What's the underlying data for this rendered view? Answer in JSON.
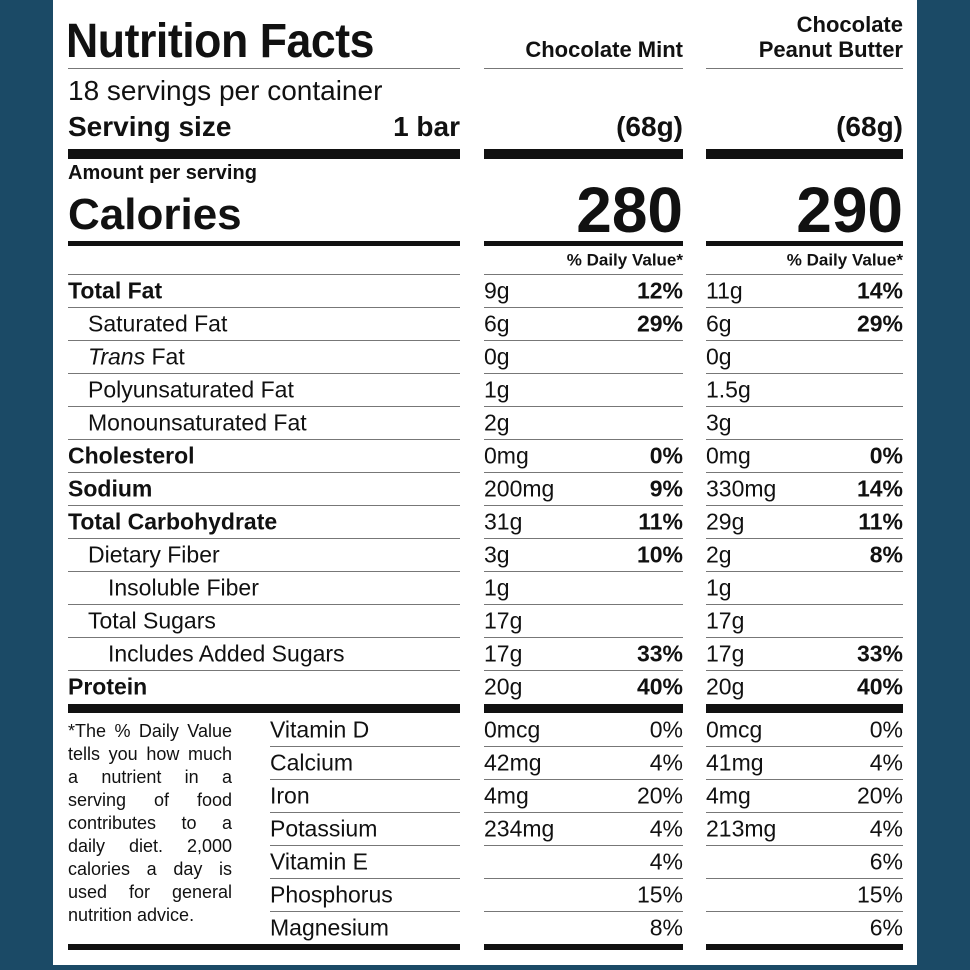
{
  "header": {
    "title": "Nutrition Facts",
    "servings": "18 servings per container",
    "serving_size_label": "Serving size",
    "serving_size": "1 bar",
    "amount_per_serving": "Amount per serving",
    "calories_label": "Calories"
  },
  "products": [
    {
      "name_lines": [
        "Chocolate Mint"
      ],
      "serving_weight": "(68g)",
      "calories": 280,
      "daily_value_header": "% Daily Value*"
    },
    {
      "name_lines": [
        "Chocolate",
        "Peanut Butter"
      ],
      "serving_weight": "(68g)",
      "calories": 290,
      "daily_value_header": "% Daily Value*"
    }
  ],
  "nutrients": [
    {
      "label": "Total Fat",
      "values": [
        [
          "9g",
          "12%"
        ],
        [
          "11g",
          "14%"
        ]
      ]
    },
    {
      "label": "Saturated Fat",
      "values": [
        [
          "6g",
          "29%"
        ],
        [
          "6g",
          "29%"
        ]
      ]
    },
    {
      "label": "Trans Fat",
      "values": [
        [
          "0g",
          null
        ],
        [
          "0g",
          null
        ]
      ]
    },
    {
      "label": "Polyunsaturated Fat",
      "values": [
        [
          "1g",
          null
        ],
        [
          "1.5g",
          null
        ]
      ]
    },
    {
      "label": "Monounsaturated Fat",
      "values": [
        [
          "2g",
          null
        ],
        [
          "3g",
          null
        ]
      ]
    },
    {
      "label": "Cholesterol",
      "values": [
        [
          "0mg",
          "0%"
        ],
        [
          "0mg",
          "0%"
        ]
      ]
    },
    {
      "label": "Sodium",
      "values": [
        [
          "200mg",
          "9%"
        ],
        [
          "330mg",
          "14%"
        ]
      ]
    },
    {
      "label": "Total Carbohydrate",
      "values": [
        [
          "31g",
          "11%"
        ],
        [
          "29g",
          "11%"
        ]
      ]
    },
    {
      "label": "Dietary Fiber",
      "values": [
        [
          "3g",
          "10%"
        ],
        [
          "2g",
          "8%"
        ]
      ]
    },
    {
      "label": "Insoluble Fiber",
      "values": [
        [
          "1g",
          null
        ],
        [
          "1g",
          null
        ]
      ]
    },
    {
      "label": "Total Sugars",
      "values": [
        [
          "17g",
          null
        ],
        [
          "17g",
          null
        ]
      ]
    },
    {
      "label": "Includes Added Sugars",
      "values": [
        [
          "17g",
          "33%"
        ],
        [
          "17g",
          "33%"
        ]
      ]
    },
    {
      "label": "Protein",
      "values": [
        [
          "20g",
          "40%"
        ],
        [
          "20g",
          "40%"
        ]
      ]
    }
  ],
  "vitamins": [
    {
      "label": "Vitamin D",
      "values": [
        [
          "0mcg",
          "0%"
        ],
        [
          "0mcg",
          "0%"
        ]
      ]
    },
    {
      "label": "Calcium",
      "values": [
        [
          "42mg",
          "4%"
        ],
        [
          "41mg",
          "4%"
        ]
      ]
    },
    {
      "label": "Iron",
      "values": [
        [
          "4mg",
          "20%"
        ],
        [
          "4mg",
          "20%"
        ]
      ]
    },
    {
      "label": "Potassium",
      "values": [
        [
          "234mg",
          "4%"
        ],
        [
          "213mg",
          "4%"
        ]
      ]
    },
    {
      "label": "Vitamin E",
      "values": [
        [
          null,
          "4%"
        ],
        [
          null,
          "6%"
        ]
      ]
    },
    {
      "label": "Phosphorus",
      "values": [
        [
          null,
          "15%"
        ],
        [
          null,
          "15%"
        ]
      ]
    },
    {
      "label": "Magnesium",
      "values": [
        [
          null,
          "8%"
        ],
        [
          null,
          "6%"
        ]
      ]
    }
  ],
  "footnote": "*The % Daily Value tells you how much a nutrient in a serving of food contributes to a daily diet. 2,000 calories a day is used for general nutrition advice."
}
